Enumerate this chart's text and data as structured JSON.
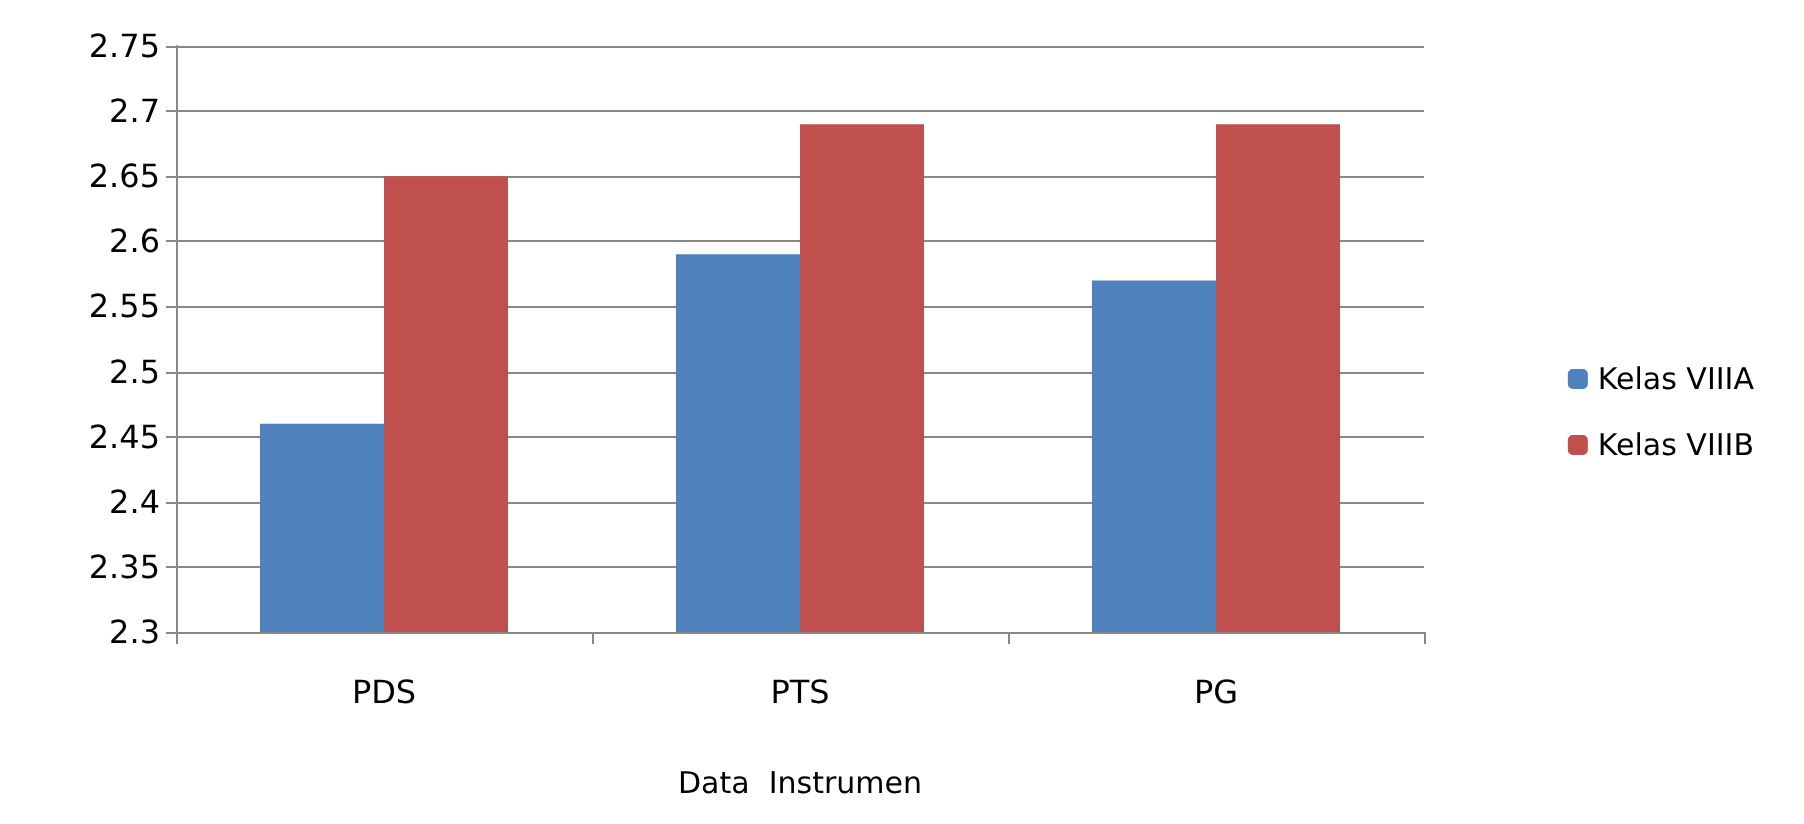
{
  "chart_data": {
    "type": "bar",
    "xlabel": "Data  Instrumen",
    "categories": [
      "PDS",
      "PTS",
      "PG"
    ],
    "series": [
      {
        "name": "Kelas VIIIA",
        "color": "#4f81bd",
        "values": [
          2.46,
          2.59,
          2.57
        ]
      },
      {
        "name": "Kelas VIIIB",
        "color": "#c0504d",
        "values": [
          2.65,
          2.69,
          2.69
        ]
      }
    ],
    "ylim": [
      2.3,
      2.75
    ],
    "yticks": [
      2.3,
      2.35,
      2.4,
      2.45,
      2.5,
      2.55,
      2.6,
      2.65,
      2.7,
      2.75
    ],
    "grid": "y",
    "legend": "right"
  }
}
